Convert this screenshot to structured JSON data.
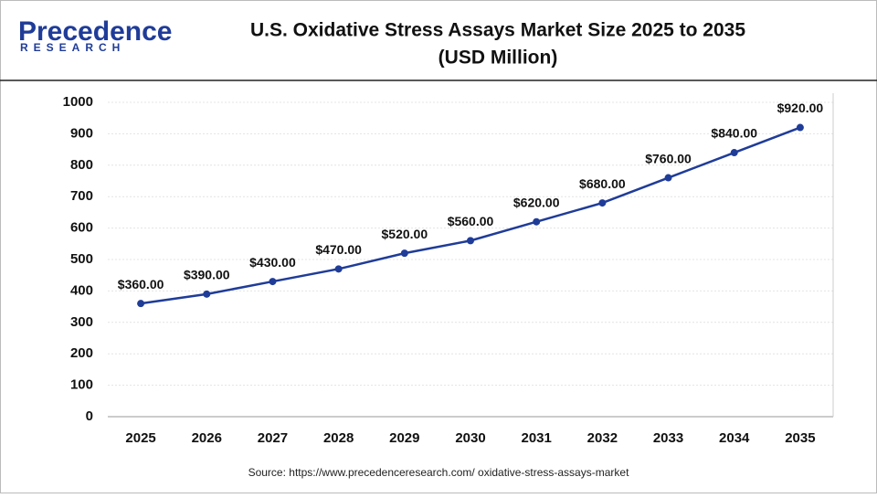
{
  "logo": {
    "name": "Precedence",
    "sub": "RESEARCH"
  },
  "chart_data": {
    "type": "line",
    "title": "U.S. Oxidative Stress Assays Market Size 2025 to 2035",
    "subtitle": "(USD Million)",
    "categories": [
      "2025",
      "2026",
      "2027",
      "2028",
      "2029",
      "2030",
      "2031",
      "2032",
      "2033",
      "2034",
      "2035"
    ],
    "values": [
      360,
      390,
      430,
      470,
      520,
      560,
      620,
      680,
      760,
      840,
      920
    ],
    "value_labels": [
      "$360.00",
      "$390.00",
      "$430.00",
      "$470.00",
      "$520.00",
      "$560.00",
      "$620.00",
      "$680.00",
      "$760.00",
      "$840.00",
      "$920.00"
    ],
    "color": "#1f3c98",
    "ylim": [
      0,
      1000
    ],
    "yticks": [
      0,
      100,
      200,
      300,
      400,
      500,
      600,
      700,
      800,
      900,
      1000
    ],
    "grid": true,
    "source": "Source: https://www.precedenceresearch.com/ oxidative-stress-assays-market"
  }
}
